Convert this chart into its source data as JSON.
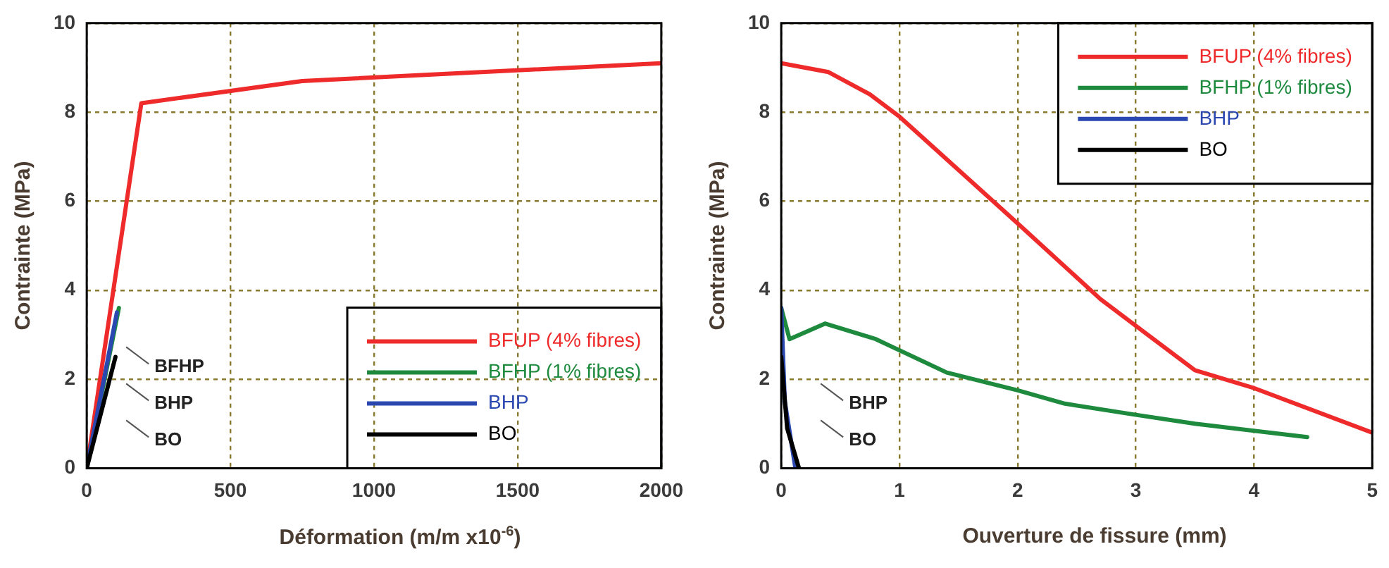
{
  "chart_data": [
    {
      "type": "line",
      "xlabel": "Déformation (m/m x10$^{-6}$)",
      "ylabel": "Contrainte (MPa)",
      "xlim": [
        0,
        2000
      ],
      "xticks": [
        0,
        500,
        1000,
        1500,
        2000
      ],
      "ylim": [
        0,
        10
      ],
      "yticks": [
        0,
        2,
        4,
        6,
        8,
        10
      ],
      "grid": true,
      "legend": "bottom right",
      "marker": "none",
      "line_style": "solid",
      "series": [
        {
          "name": "BFUP (4% fibres)",
          "color": "#ee2a2a",
          "x": [
            0,
            190,
            750,
            2000
          ],
          "values": [
            0,
            8.2,
            8.7,
            9.1
          ]
        },
        {
          "name": "BFHP (1% fibres)",
          "color": "#1e8a3e",
          "x": [
            0,
            112
          ],
          "values": [
            0,
            3.6
          ]
        },
        {
          "name": "BHP",
          "color": "#2a48b0",
          "x": [
            0,
            105
          ],
          "values": [
            0,
            3.5
          ]
        },
        {
          "name": "BO",
          "color": "#000000",
          "x": [
            0,
            100
          ],
          "values": [
            0,
            2.5
          ]
        }
      ],
      "annotations": [
        "BFHP",
        "BHP",
        "BO"
      ]
    },
    {
      "type": "line",
      "xlabel": "Ouverture de fissure (mm)",
      "ylabel": "Contrainte (MPa)",
      "xlim": [
        0,
        5
      ],
      "xticks": [
        0,
        1,
        2,
        3,
        4,
        5
      ],
      "ylim": [
        0,
        10
      ],
      "yticks": [
        0,
        2,
        4,
        6,
        8,
        10
      ],
      "grid": true,
      "legend": "top right",
      "marker": "none",
      "line_style": "solid",
      "series": [
        {
          "name": "BFUP (4% fibres)",
          "color": "#ee2a2a",
          "x": [
            0,
            0.4,
            0.75,
            1,
            2,
            2.7,
            3,
            3.5,
            4,
            5
          ],
          "values": [
            9.1,
            8.9,
            8.4,
            7.9,
            5.5,
            3.8,
            3.2,
            2.2,
            1.8,
            0.8
          ]
        },
        {
          "name": "BFHP (1% fibres)",
          "color": "#1e8a3e",
          "x": [
            0,
            0.07,
            0.37,
            0.8,
            1.4,
            2,
            2.4,
            3,
            3.5,
            4.45
          ],
          "values": [
            3.6,
            2.9,
            3.25,
            2.9,
            2.15,
            1.75,
            1.45,
            1.2,
            1.0,
            0.7
          ]
        },
        {
          "name": "BHP",
          "color": "#2a48b0",
          "x": [
            0,
            0.03,
            0.12
          ],
          "values": [
            3.6,
            1.5,
            0
          ]
        },
        {
          "name": "BO",
          "color": "#000000",
          "x": [
            0,
            0.05,
            0.15
          ],
          "values": [
            2.5,
            0.9,
            0
          ]
        }
      ],
      "annotations": [
        "BHP",
        "BO"
      ]
    }
  ]
}
